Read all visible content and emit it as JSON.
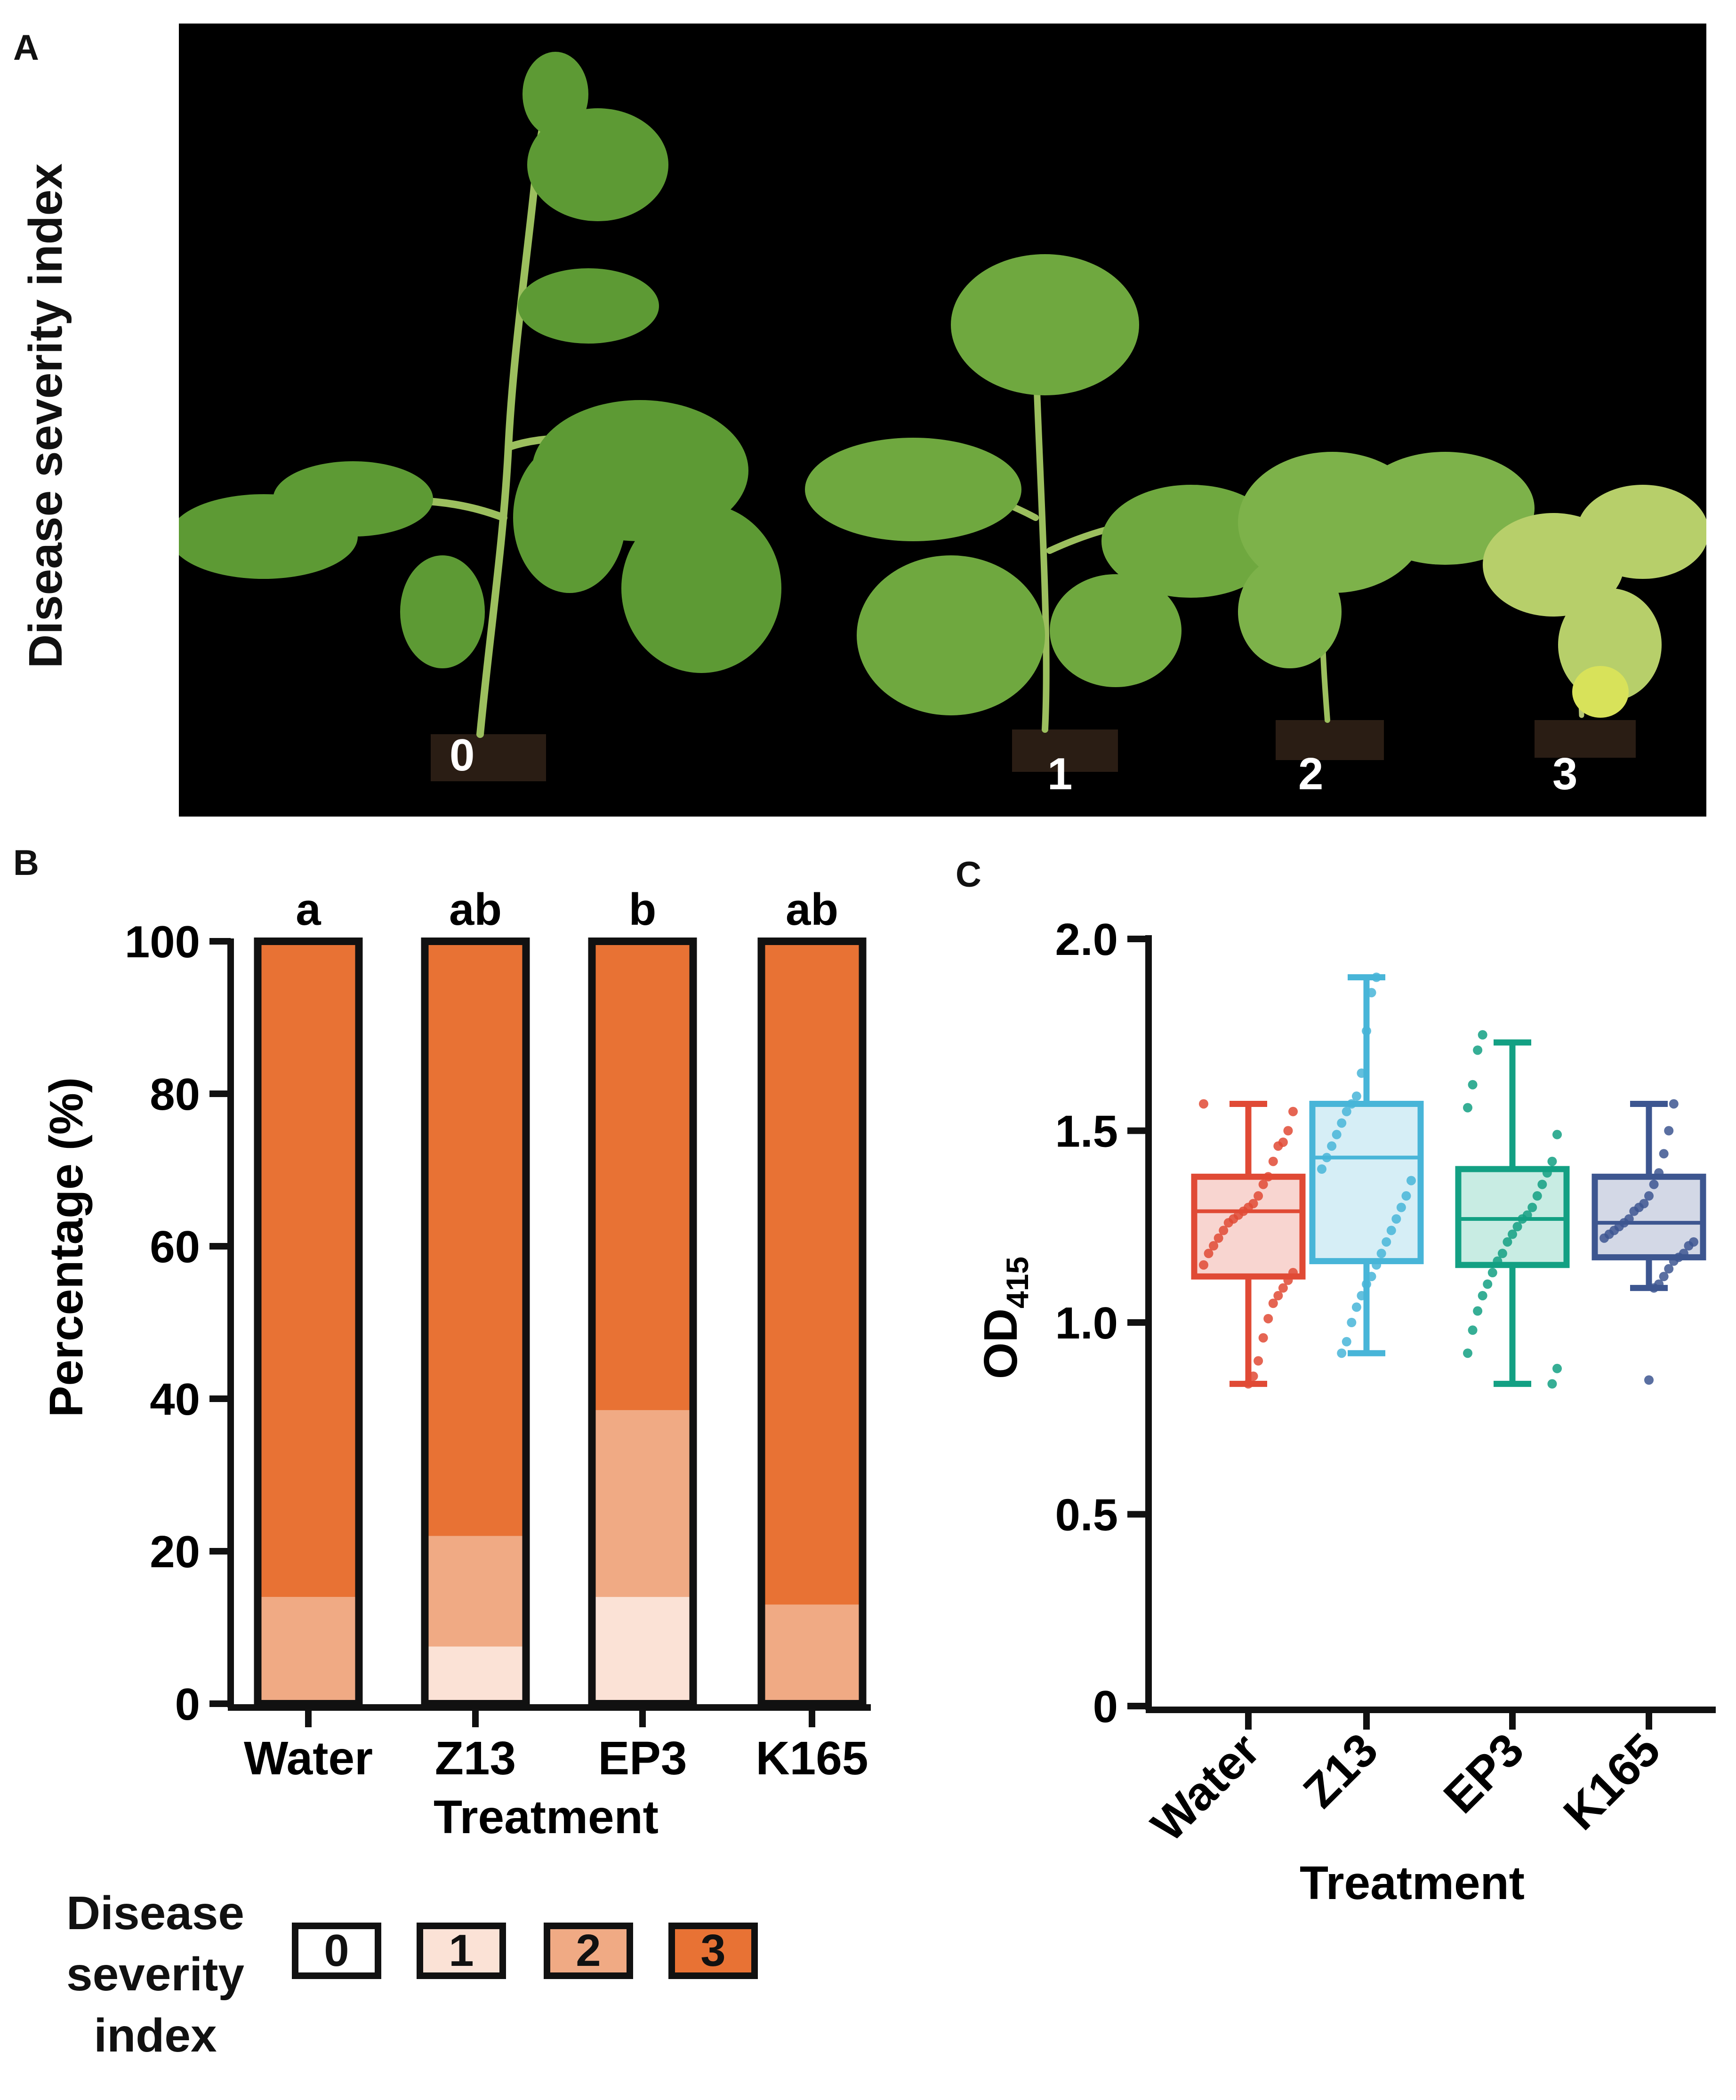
{
  "panels": {
    "a": "A",
    "b": "B",
    "c": "C"
  },
  "photo": {
    "ylabel": "Disease severity index",
    "plant_labels": [
      "0",
      "1",
      "2",
      "3"
    ]
  },
  "legend": {
    "title": "Disease severity index",
    "title_lines": [
      "Disease",
      "severity",
      "index"
    ],
    "items": [
      {
        "label": "0",
        "color": "#ffffff"
      },
      {
        "label": "1",
        "color": "#fbe2d6"
      },
      {
        "label": "2",
        "color": "#f0aa84"
      },
      {
        "label": "3",
        "color": "#e87234"
      }
    ]
  },
  "chart_data": [
    {
      "type": "bar",
      "stacked": true,
      "categories": [
        "Water",
        "Z13",
        "EP3",
        "K165"
      ],
      "series": [
        {
          "name": "0",
          "color": "#ffffff",
          "values": [
            0,
            0,
            0,
            0
          ]
        },
        {
          "name": "1",
          "color": "#fbe2d6",
          "values": [
            0,
            7.5,
            14,
            0
          ]
        },
        {
          "name": "2",
          "color": "#f0aa84",
          "values": [
            14,
            14.5,
            24.5,
            13
          ]
        },
        {
          "name": "3",
          "color": "#e87234",
          "values": [
            86,
            78,
            61.5,
            87
          ]
        }
      ],
      "significance_letters": [
        "a",
        "ab",
        "b",
        "ab"
      ],
      "xlabel": "Treatment",
      "ylabel": "Percentage (%)",
      "ylim": [
        0,
        100
      ],
      "yticks": [
        0,
        20,
        40,
        60,
        80,
        100
      ]
    },
    {
      "type": "box",
      "categories": [
        "Water",
        "Z13",
        "EP3",
        "K165"
      ],
      "colors": [
        "#e04a35",
        "#48b5d8",
        "#13a083",
        "#3d5690"
      ],
      "fill_colors": [
        "#f8d5d0",
        "#d6eef6",
        "#c8ece3",
        "#d3d8e6"
      ],
      "boxes": [
        {
          "min": 0.84,
          "q1": 1.12,
          "median": 1.29,
          "q3": 1.38,
          "max": 1.57
        },
        {
          "min": 0.92,
          "q1": 1.16,
          "median": 1.43,
          "q3": 1.57,
          "max": 1.9
        },
        {
          "min": 0.84,
          "q1": 1.15,
          "median": 1.27,
          "q3": 1.4,
          "max": 1.73
        },
        {
          "min": 1.09,
          "q1": 1.17,
          "median": 1.26,
          "q3": 1.38,
          "max": 1.57
        }
      ],
      "points": [
        [
          1.57,
          1.55,
          1.5,
          1.47,
          1.46,
          1.42,
          1.38,
          1.36,
          1.33,
          1.31,
          1.3,
          1.29,
          1.28,
          1.27,
          1.26,
          1.24,
          1.22,
          1.2,
          1.18,
          1.15,
          1.13,
          1.11,
          1.09,
          1.07,
          1.05,
          1.01,
          0.96,
          0.9,
          0.86,
          0.84
        ],
        [
          1.9,
          1.86,
          1.76,
          1.65,
          1.59,
          1.57,
          1.55,
          1.52,
          1.49,
          1.46,
          1.43,
          1.4,
          1.37,
          1.33,
          1.3,
          1.27,
          1.24,
          1.21,
          1.18,
          1.15,
          1.12,
          1.1,
          1.07,
          1.04,
          1.0,
          0.95,
          0.92
        ],
        [
          1.75,
          1.71,
          1.62,
          1.56,
          1.49,
          1.42,
          1.39,
          1.36,
          1.33,
          1.3,
          1.28,
          1.27,
          1.25,
          1.23,
          1.21,
          1.18,
          1.16,
          1.13,
          1.1,
          1.07,
          1.03,
          0.98,
          0.92,
          0.88,
          0.84
        ],
        [
          1.57,
          1.5,
          1.44,
          1.39,
          1.36,
          1.33,
          1.31,
          1.3,
          1.29,
          1.27,
          1.26,
          1.25,
          1.24,
          1.23,
          1.22,
          1.21,
          1.2,
          1.18,
          1.17,
          1.16,
          1.14,
          1.12,
          1.1,
          1.09,
          0.85
        ]
      ],
      "xlabel": "Treatment",
      "ylabel": "OD",
      "ylabel_subscript": "415",
      "ylim": [
        0,
        2.0
      ],
      "yticks": [
        "0",
        "0.5",
        "1.0",
        "1.5",
        "2.0"
      ]
    }
  ]
}
